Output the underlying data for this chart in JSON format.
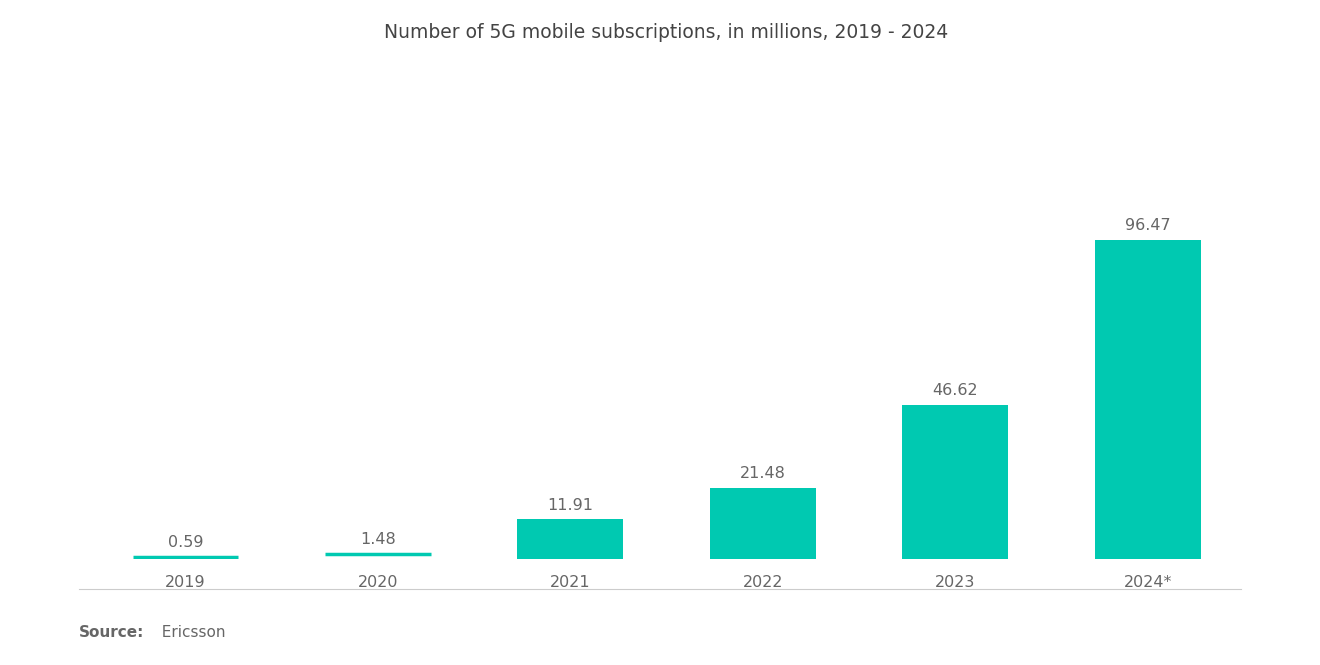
{
  "title": "Number of 5G mobile subscriptions, in millions, 2019 - 2024",
  "categories": [
    "2019",
    "2020",
    "2021",
    "2022",
    "2023",
    "2024*"
  ],
  "values": [
    0.59,
    1.48,
    11.91,
    21.48,
    46.62,
    96.47
  ],
  "bar_color": "#00C9B1",
  "background_color": "#ffffff",
  "text_color": "#666666",
  "title_color": "#444444",
  "source_bold": "Source:",
  "source_normal": "  Ericsson",
  "ylim": [
    0,
    145
  ],
  "bar_width": 0.55,
  "value_fontsize": 11.5,
  "category_fontsize": 11.5,
  "title_fontsize": 13.5,
  "source_fontsize": 11
}
